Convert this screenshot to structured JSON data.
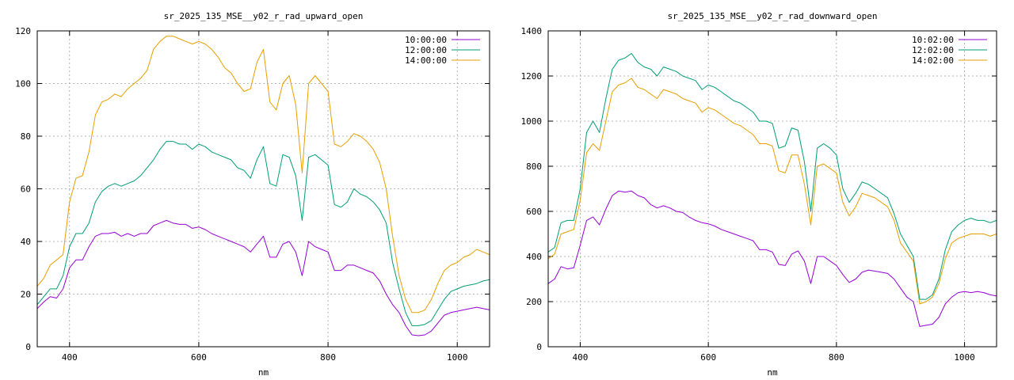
{
  "chart_data": [
    {
      "type": "line",
      "title": "sr_2025_135_MSE__y02_r_rad_upward_open",
      "xlabel": "nm",
      "ylabel": "",
      "xlim": [
        350,
        1050
      ],
      "ylim": [
        0,
        120
      ],
      "xticks": [
        400,
        600,
        800,
        1000
      ],
      "yticks": [
        0,
        20,
        40,
        60,
        80,
        100,
        120
      ],
      "grid": true,
      "legend": "top-right",
      "x": [
        350,
        360,
        370,
        380,
        390,
        400,
        410,
        420,
        430,
        440,
        450,
        460,
        470,
        480,
        490,
        500,
        510,
        520,
        530,
        540,
        550,
        560,
        570,
        580,
        590,
        600,
        610,
        620,
        630,
        640,
        650,
        660,
        670,
        680,
        690,
        700,
        710,
        720,
        730,
        740,
        750,
        760,
        770,
        780,
        790,
        800,
        810,
        820,
        830,
        840,
        850,
        860,
        870,
        880,
        890,
        900,
        910,
        920,
        930,
        940,
        950,
        960,
        970,
        980,
        990,
        1000,
        1010,
        1020,
        1030,
        1040,
        1050
      ],
      "series": [
        {
          "name": "10:00:00",
          "color": "#9400d3",
          "values": [
            14.5,
            17,
            19,
            18.5,
            22,
            30,
            33,
            33,
            38,
            42,
            43,
            43,
            43.5,
            42,
            43,
            42,
            43,
            43,
            46,
            47,
            48,
            47,
            46.5,
            46.5,
            45,
            45.5,
            44.5,
            43,
            42,
            41,
            40,
            39,
            38,
            36,
            39,
            42,
            34,
            34,
            39,
            40,
            36,
            27,
            40,
            38,
            37,
            36,
            29,
            29,
            31,
            31,
            30,
            29,
            28,
            25,
            20,
            16,
            13,
            8,
            4.5,
            4.2,
            4.5,
            6,
            9,
            12,
            13,
            13.5,
            14,
            14.5,
            15,
            14.5,
            14
          ]
        },
        {
          "name": "12:00:00",
          "color": "#009e73",
          "values": [
            16,
            19,
            22,
            22,
            27,
            38,
            43,
            43,
            47,
            55,
            59,
            61,
            62,
            61,
            62,
            63,
            65,
            68,
            71,
            75,
            78,
            78,
            77,
            77,
            75,
            77,
            76,
            74,
            73,
            72,
            71,
            68,
            67,
            64,
            71,
            76,
            62,
            61,
            73,
            72,
            65,
            48,
            72,
            73,
            71,
            69,
            54,
            53,
            55,
            60,
            58,
            57,
            55,
            52,
            47,
            32,
            22,
            13,
            8,
            8,
            8.5,
            10,
            14,
            18,
            21,
            22,
            23,
            23.5,
            24,
            25,
            25.5
          ]
        },
        {
          "name": "14:00:00",
          "color": "#e69f00",
          "values": [
            23,
            26,
            31,
            33,
            35,
            55,
            64,
            65,
            74,
            88,
            93,
            94,
            96,
            95,
            98,
            100,
            102,
            105,
            113,
            116,
            118,
            118,
            117,
            116,
            115,
            116,
            115,
            113,
            110,
            106,
            104,
            100,
            97,
            98,
            108,
            113,
            93,
            90,
            100,
            103,
            92,
            66,
            100,
            103,
            100,
            97,
            77,
            76,
            78,
            81,
            80,
            78,
            75,
            70,
            60,
            42,
            27,
            18,
            13,
            13,
            14,
            18,
            24,
            29,
            31,
            32,
            34,
            35,
            37,
            36,
            35
          ]
        }
      ]
    },
    {
      "type": "line",
      "title": "sr_2025_135_MSE__y02_r_rad_downward_open",
      "xlabel": "nm",
      "ylabel": "",
      "xlim": [
        350,
        1050
      ],
      "ylim": [
        0,
        1400
      ],
      "xticks": [
        400,
        600,
        800,
        1000
      ],
      "yticks": [
        0,
        200,
        400,
        600,
        800,
        1000,
        1200,
        1400
      ],
      "grid": true,
      "legend": "top-right",
      "x": [
        350,
        360,
        370,
        380,
        390,
        400,
        410,
        420,
        430,
        440,
        450,
        460,
        470,
        480,
        490,
        500,
        510,
        520,
        530,
        540,
        550,
        560,
        570,
        580,
        590,
        600,
        610,
        620,
        630,
        640,
        650,
        660,
        670,
        680,
        690,
        700,
        710,
        720,
        730,
        740,
        750,
        760,
        770,
        780,
        790,
        800,
        810,
        820,
        830,
        840,
        850,
        860,
        870,
        880,
        890,
        900,
        910,
        920,
        930,
        940,
        950,
        960,
        970,
        980,
        990,
        1000,
        1010,
        1020,
        1030,
        1040,
        1050
      ],
      "series": [
        {
          "name": "10:02:00",
          "color": "#9400d3",
          "values": [
            280,
            300,
            355,
            345,
            350,
            450,
            560,
            575,
            540,
            610,
            670,
            690,
            685,
            690,
            670,
            660,
            630,
            615,
            625,
            615,
            600,
            595,
            575,
            560,
            550,
            545,
            535,
            520,
            510,
            500,
            490,
            480,
            470,
            430,
            430,
            420,
            365,
            360,
            410,
            425,
            380,
            280,
            400,
            400,
            380,
            360,
            320,
            285,
            300,
            330,
            340,
            335,
            330,
            325,
            300,
            260,
            220,
            200,
            90,
            95,
            100,
            130,
            190,
            220,
            240,
            245,
            240,
            245,
            240,
            230,
            225
          ]
        },
        {
          "name": "12:02:00",
          "color": "#009e73",
          "values": [
            420,
            440,
            550,
            560,
            560,
            700,
            950,
            1000,
            950,
            1100,
            1230,
            1270,
            1280,
            1300,
            1260,
            1240,
            1230,
            1200,
            1240,
            1230,
            1220,
            1200,
            1190,
            1180,
            1140,
            1160,
            1150,
            1130,
            1110,
            1090,
            1080,
            1060,
            1040,
            1000,
            1000,
            990,
            880,
            890,
            970,
            960,
            820,
            600,
            880,
            900,
            880,
            850,
            700,
            640,
            680,
            730,
            720,
            700,
            680,
            660,
            590,
            500,
            450,
            400,
            210,
            210,
            230,
            300,
            430,
            510,
            540,
            560,
            570,
            560,
            560,
            550,
            560
          ]
        },
        {
          "name": "14:02:00",
          "color": "#e69f00",
          "values": [
            390,
            410,
            500,
            510,
            520,
            650,
            860,
            900,
            870,
            1000,
            1130,
            1160,
            1170,
            1190,
            1150,
            1140,
            1120,
            1100,
            1140,
            1130,
            1120,
            1100,
            1090,
            1080,
            1040,
            1060,
            1050,
            1030,
            1010,
            990,
            980,
            960,
            940,
            900,
            900,
            890,
            780,
            770,
            850,
            850,
            720,
            540,
            800,
            810,
            790,
            770,
            640,
            580,
            620,
            680,
            670,
            660,
            640,
            620,
            560,
            460,
            420,
            380,
            190,
            200,
            220,
            280,
            390,
            460,
            480,
            490,
            500,
            500,
            500,
            490,
            500
          ]
        }
      ]
    }
  ]
}
